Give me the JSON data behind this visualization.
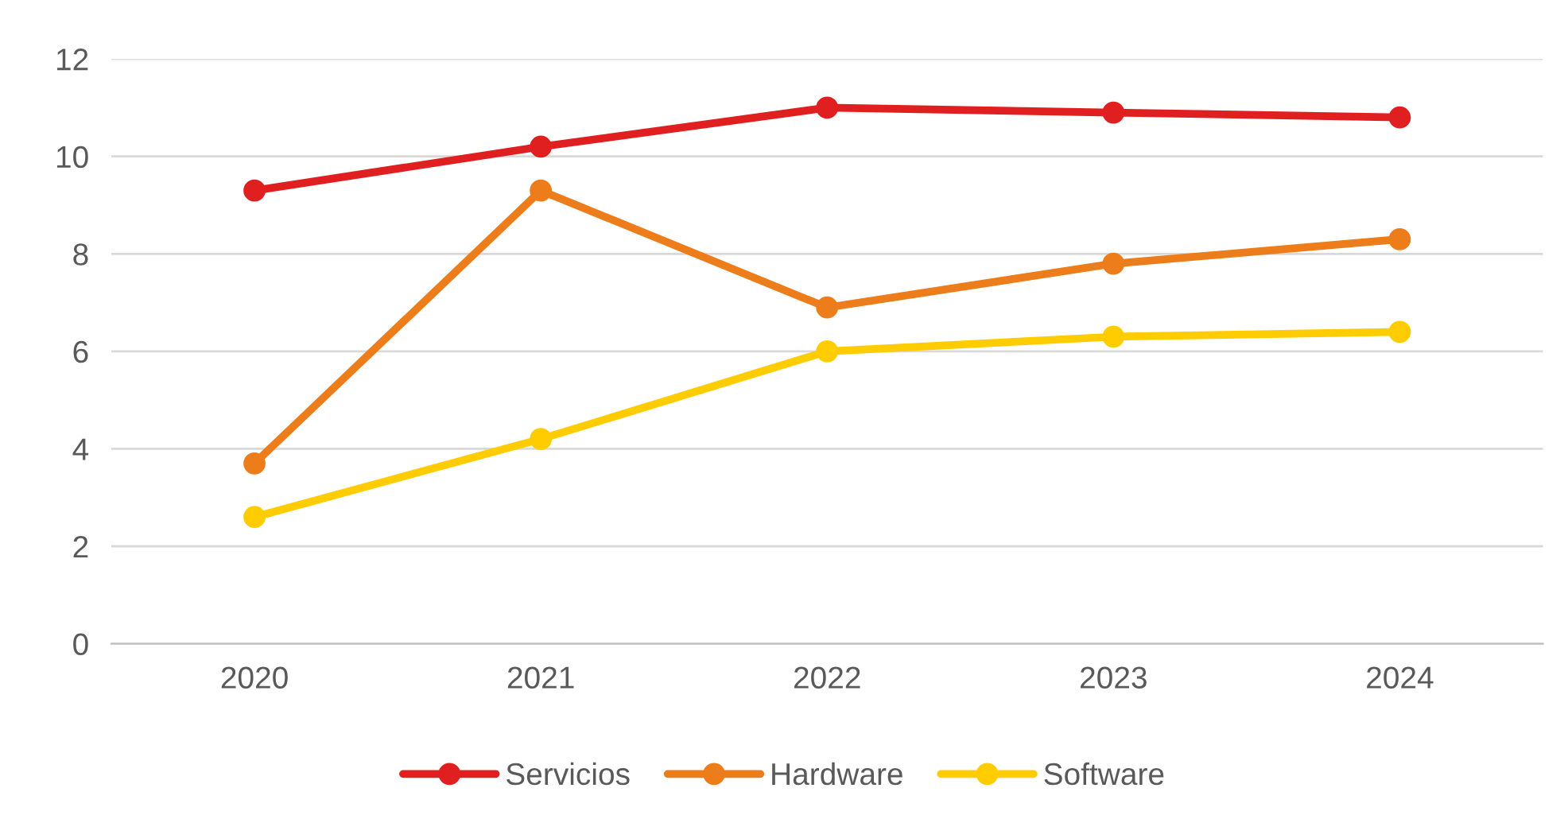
{
  "chart_data": {
    "type": "line",
    "categories": [
      "2020",
      "2021",
      "2022",
      "2023",
      "2024"
    ],
    "series": [
      {
        "name": "Servicios",
        "color": "#e02020",
        "values": [
          9.3,
          10.2,
          11.0,
          10.9,
          10.8
        ]
      },
      {
        "name": "Hardware",
        "color": "#ed7d1a",
        "values": [
          3.7,
          9.3,
          6.9,
          7.8,
          8.3
        ]
      },
      {
        "name": "Software",
        "color": "#ffcc00",
        "values": [
          2.6,
          4.2,
          6.0,
          6.3,
          6.4
        ]
      }
    ],
    "ylim": [
      0,
      12
    ],
    "yticks": [
      0,
      2,
      4,
      6,
      8,
      10,
      12
    ],
    "grid": "y",
    "legend": "bottom",
    "marker": "circle",
    "line_style": "solid"
  }
}
